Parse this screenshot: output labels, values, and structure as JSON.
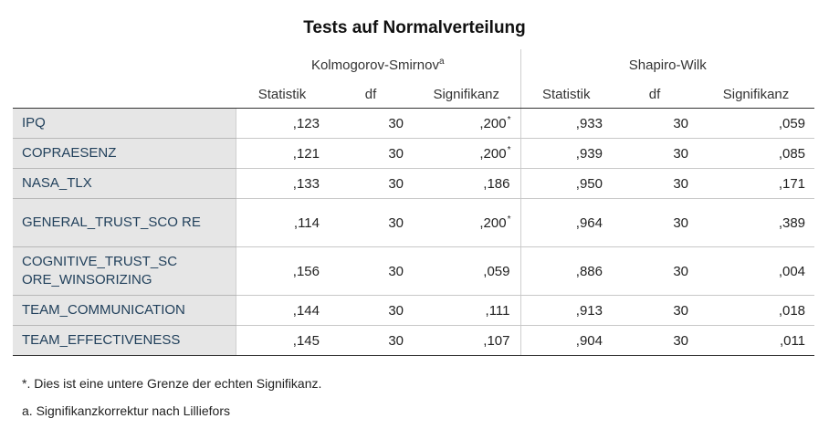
{
  "title": "Tests auf Normalverteilung",
  "groups": {
    "ks": {
      "label": "Kolmogorov-Smirnov",
      "sup": "a"
    },
    "sw": {
      "label": "Shapiro-Wilk"
    }
  },
  "columns": [
    "Statistik",
    "df",
    "Signifikanz",
    "Statistik",
    "df",
    "Signifikanz"
  ],
  "rows": [
    {
      "label": "IPQ",
      "ks_stat": ",123",
      "ks_df": "30",
      "ks_sig": ",200",
      "ks_sig_mark": "*",
      "sw_stat": ",933",
      "sw_df": "30",
      "sw_sig": ",059"
    },
    {
      "label": "COPRAESENZ",
      "ks_stat": ",121",
      "ks_df": "30",
      "ks_sig": ",200",
      "ks_sig_mark": "*",
      "sw_stat": ",939",
      "sw_df": "30",
      "sw_sig": ",085"
    },
    {
      "label": "NASA_TLX",
      "ks_stat": ",133",
      "ks_df": "30",
      "ks_sig": ",186",
      "ks_sig_mark": "",
      "sw_stat": ",950",
      "sw_df": "30",
      "sw_sig": ",171"
    },
    {
      "label": "GENERAL_TRUST_SCO RE",
      "ks_stat": ",114",
      "ks_df": "30",
      "ks_sig": ",200",
      "ks_sig_mark": "*",
      "sw_stat": ",964",
      "sw_df": "30",
      "sw_sig": ",389"
    },
    {
      "label": "COGNITIVE_TRUST_SC ORE_WINSORIZING",
      "ks_stat": ",156",
      "ks_df": "30",
      "ks_sig": ",059",
      "ks_sig_mark": "",
      "sw_stat": ",886",
      "sw_df": "30",
      "sw_sig": ",004"
    },
    {
      "label": "TEAM_COMMUNICATION",
      "ks_stat": ",144",
      "ks_df": "30",
      "ks_sig": ",111",
      "ks_sig_mark": "",
      "sw_stat": ",913",
      "sw_df": "30",
      "sw_sig": ",018"
    },
    {
      "label": "TEAM_EFFECTIVENESS",
      "ks_stat": ",145",
      "ks_df": "30",
      "ks_sig": ",107",
      "ks_sig_mark": "",
      "sw_stat": ",904",
      "sw_df": "30",
      "sw_sig": ",011"
    }
  ],
  "footnotes": [
    "*. Dies ist eine untere Grenze der echten Signifikanz.",
    "a. Signifikanzkorrektur nach Lilliefors"
  ]
}
